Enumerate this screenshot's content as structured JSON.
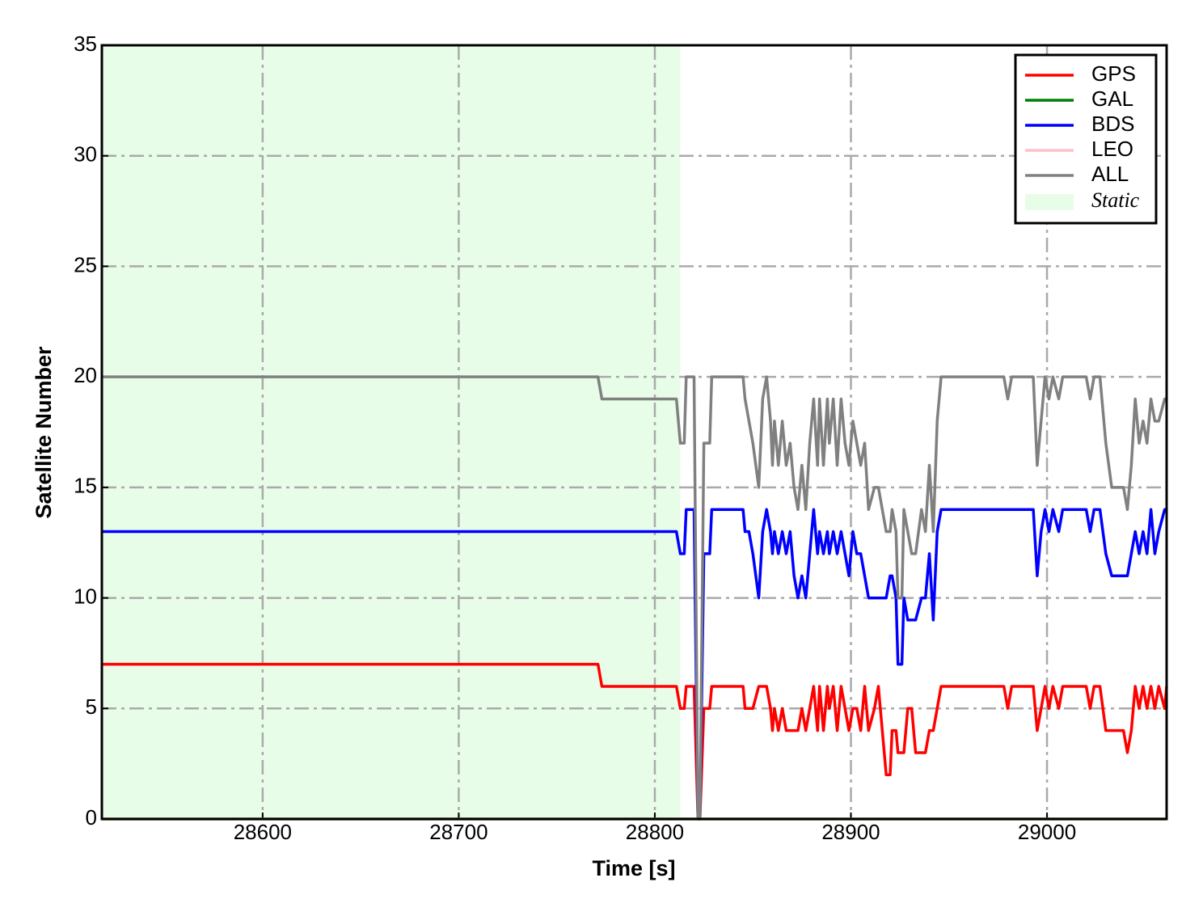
{
  "chart_data": {
    "type": "line",
    "x_label": "Time [s]",
    "y_label": "Satellite Number",
    "xlim": [
      28518,
      29061
    ],
    "ylim": [
      0,
      35
    ],
    "xticks": [
      28600,
      28700,
      28800,
      28900,
      29000
    ],
    "yticks": [
      0,
      5,
      10,
      15,
      20,
      25,
      30,
      35
    ],
    "grid": true,
    "legend": "upper right",
    "shade": {
      "name": "Static",
      "color": "#e8fde8",
      "x": [
        28518,
        28813
      ]
    },
    "x": [
      28518,
      28771,
      28773,
      28811,
      28813,
      28815,
      28816,
      28820,
      28822,
      28823,
      28825,
      28828,
      28829,
      28845,
      28846,
      28848,
      28850,
      28853,
      28855,
      28857,
      28859,
      28860,
      28861,
      28863,
      28865,
      28867,
      28869,
      28871,
      28873,
      28875,
      28877,
      28879,
      28881,
      28883,
      28884,
      28886,
      28888,
      28889,
      28891,
      28893,
      28895,
      28897,
      28899,
      28901,
      28903,
      28905,
      28907,
      28909,
      28912,
      28914,
      28918,
      28920,
      28921,
      28923,
      28924,
      28926,
      28927,
      28929,
      28931,
      28933,
      28936,
      28938,
      28940,
      28942,
      28944,
      28946,
      28978,
      28980,
      28982,
      28993,
      28995,
      28997,
      28999,
      29001,
      29003,
      29006,
      29008,
      29020,
      29022,
      29024,
      29027,
      29030,
      29033,
      29039,
      29041,
      29043,
      29045,
      29047,
      29049,
      29051,
      29053,
      29055,
      29057,
      29060,
      29061
    ],
    "series": [
      {
        "name": "GPS",
        "color": "#ff0000",
        "values": [
          7,
          7,
          6,
          6,
          5,
          5,
          6,
          6,
          0,
          0,
          5,
          5,
          6,
          6,
          5,
          5,
          5,
          6,
          6,
          6,
          5,
          4,
          5,
          4,
          5,
          4,
          4,
          4,
          4,
          5,
          4,
          5,
          6,
          4,
          6,
          4,
          6,
          5,
          6,
          4,
          6,
          5,
          4,
          5,
          5,
          4,
          6,
          4,
          5,
          6,
          2,
          2,
          4,
          4,
          3,
          3,
          3,
          5,
          5,
          3,
          3,
          3,
          4,
          4,
          5,
          6,
          6,
          5,
          6,
          6,
          4,
          5,
          6,
          5,
          6,
          5,
          6,
          6,
          5,
          6,
          6,
          4,
          4,
          4,
          3,
          4,
          6,
          5,
          6,
          5,
          6,
          5,
          6,
          5,
          6
        ]
      },
      {
        "name": "GAL",
        "color": "#008000",
        "x": [
          28518,
          29061
        ],
        "values": [
          0,
          0
        ]
      },
      {
        "name": "BDS",
        "color": "#0000ff",
        "values": [
          13,
          13,
          13,
          13,
          12,
          12,
          14,
          14,
          0,
          0,
          12,
          12,
          14,
          14,
          13,
          13,
          12,
          10,
          13,
          14,
          13,
          12,
          13,
          12,
          13,
          12,
          13,
          11,
          10,
          11,
          10,
          12,
          14,
          12,
          13,
          12,
          13,
          12,
          13,
          12,
          13,
          12,
          11,
          13,
          12,
          12,
          11,
          10,
          10,
          10,
          10,
          11,
          11,
          10,
          7,
          7,
          10,
          9,
          9,
          9,
          10,
          10,
          12,
          9,
          13,
          14,
          14,
          14,
          14,
          14,
          11,
          13,
          14,
          13,
          14,
          13,
          14,
          14,
          13,
          14,
          14,
          12,
          11,
          11,
          11,
          12,
          13,
          12,
          13,
          12,
          14,
          12,
          13,
          14,
          14
        ]
      },
      {
        "name": "LEO",
        "color": "#ffc0cb",
        "x": [
          28518,
          29061
        ],
        "values": [
          0,
          0
        ]
      },
      {
        "name": "ALL",
        "color": "#808080",
        "values": [
          20,
          20,
          19,
          19,
          17,
          17,
          20,
          20,
          0,
          0,
          17,
          17,
          20,
          20,
          19,
          18,
          17,
          15,
          19,
          20,
          18,
          16,
          18,
          16,
          18,
          16,
          17,
          15,
          14,
          16,
          14,
          17,
          19,
          16,
          19,
          16,
          19,
          17,
          19,
          16,
          19,
          17,
          16,
          18,
          17,
          16,
          17,
          14,
          15,
          15,
          13,
          13,
          14,
          13,
          10,
          10,
          14,
          13,
          12,
          12,
          14,
          13,
          16,
          13,
          18,
          20,
          20,
          19,
          20,
          20,
          16,
          18,
          20,
          19,
          20,
          19,
          20,
          20,
          19,
          20,
          20,
          17,
          15,
          15,
          14,
          16,
          19,
          17,
          18,
          17,
          19,
          18,
          18,
          19,
          19
        ]
      }
    ]
  }
}
